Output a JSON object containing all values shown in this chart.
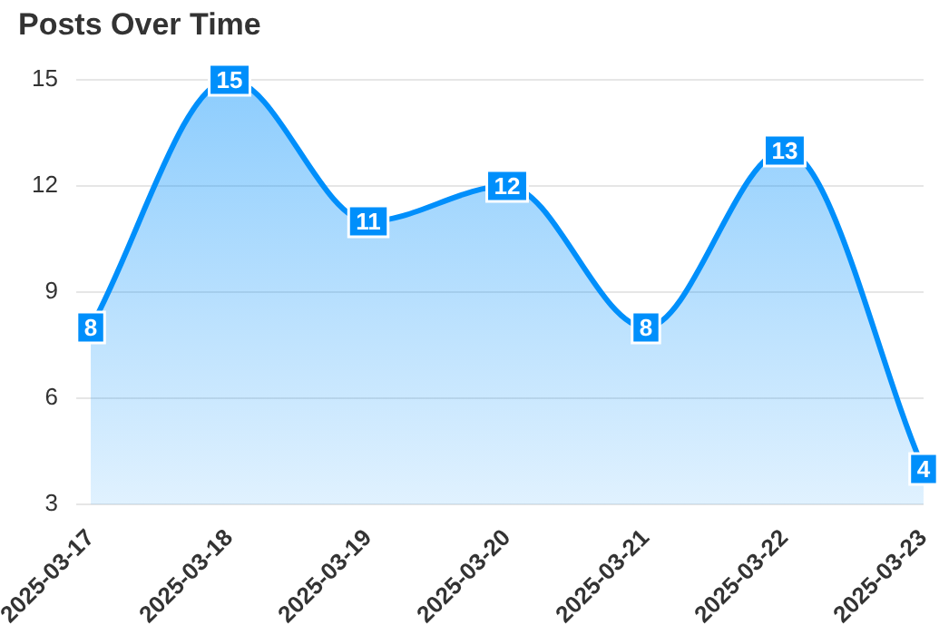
{
  "chart_data": {
    "type": "area",
    "title": "Posts Over Time",
    "categories": [
      "2025-03-17",
      "2025-03-18",
      "2025-03-19",
      "2025-03-20",
      "2025-03-21",
      "2025-03-22",
      "2025-03-23"
    ],
    "values": [
      8,
      15,
      11,
      12,
      8,
      13,
      4
    ],
    "color": "#008ffb",
    "ylim": [
      3,
      15
    ],
    "yticks": [
      3,
      6,
      9,
      12,
      15
    ],
    "grid": "y",
    "data_labels": true
  }
}
